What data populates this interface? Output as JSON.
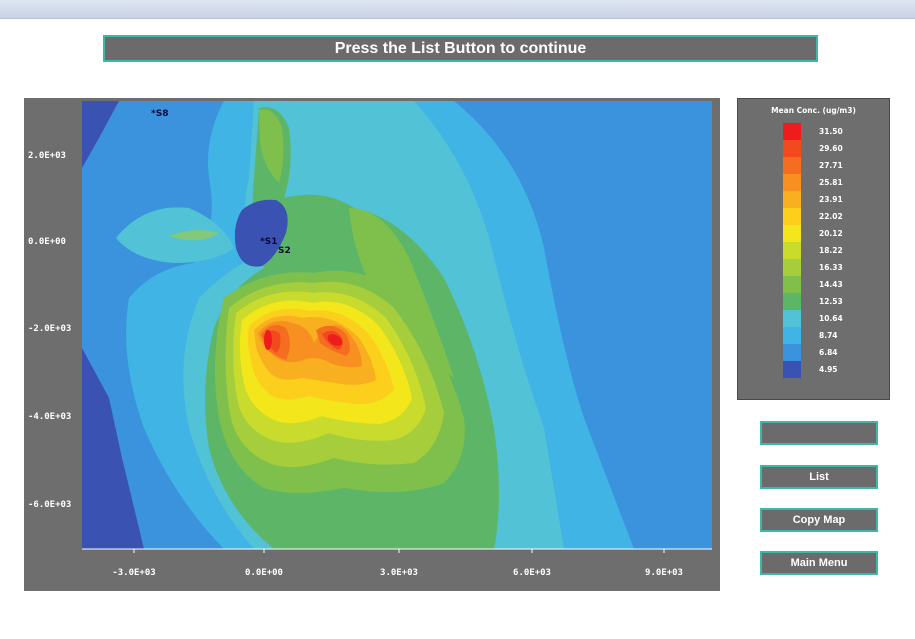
{
  "banner": {
    "text": "Press the List Button to continue"
  },
  "map": {
    "y_ticks": [
      "2.0E+03",
      "0.0E+00",
      "-2.0E+03",
      "-4.0E+03",
      "-6.0E+03"
    ],
    "x_ticks": [
      "-3.0E+03",
      "0.0E+00",
      "3.0E+03",
      "6.0E+03",
      "9.0E+03"
    ],
    "sources": [
      "S8",
      "S1",
      "S2"
    ]
  },
  "legend": {
    "title": "Mean Conc. (ug/m3)",
    "items": [
      {
        "value": "31.50",
        "color": "#ee1c1c"
      },
      {
        "value": "29.60",
        "color": "#f24a1e"
      },
      {
        "value": "27.71",
        "color": "#f56d1f"
      },
      {
        "value": "25.81",
        "color": "#f79021"
      },
      {
        "value": "23.91",
        "color": "#f9b020"
      },
      {
        "value": "22.02",
        "color": "#fbcf1c"
      },
      {
        "value": "20.12",
        "color": "#f3e61b"
      },
      {
        "value": "18.22",
        "color": "#c9dc2d"
      },
      {
        "value": "16.33",
        "color": "#a5cd3c"
      },
      {
        "value": "14.43",
        "color": "#7fc04c"
      },
      {
        "value": "12.53",
        "color": "#5db668"
      },
      {
        "value": "10.64",
        "color": "#52c2d6"
      },
      {
        "value": "8.74",
        "color": "#41b4e6"
      },
      {
        "value": "6.84",
        "color": "#3a93dc"
      },
      {
        "value": "4.95",
        "color": "#3a52b2"
      }
    ]
  },
  "buttons": {
    "blank": "",
    "list": "List",
    "copy_map": "Copy Map",
    "main_menu": "Main Menu"
  }
}
